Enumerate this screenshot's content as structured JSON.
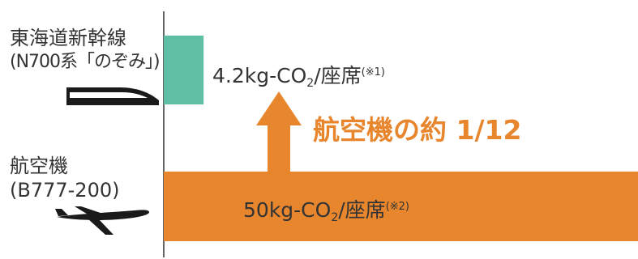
{
  "chart_data": {
    "type": "bar",
    "orientation": "horizontal",
    "unit": "kg-CO₂/座席",
    "categories": [
      {
        "name": "東海道新幹線",
        "detail": "(N700系「のぞみ」)",
        "icon": "shinkansen-train-icon"
      },
      {
        "name": "航空機",
        "detail": "(B777-200)",
        "icon": "airplane-icon"
      }
    ],
    "values": [
      4.2,
      50
    ],
    "value_labels": [
      {
        "number": "4.2",
        "unit_main": "kg-CO",
        "unit_sub": "2",
        "unit_tail": "/座席",
        "note": "(※1)"
      },
      {
        "number": "50",
        "unit_main": "kg-CO",
        "unit_sub": "2",
        "unit_tail": "/座席",
        "note": "(※2)"
      }
    ],
    "annotation": "航空機の約 1/12",
    "colors": {
      "shinkansen": "#5fbfa5",
      "airplane": "#e8862e",
      "arrow": "#e8862e",
      "text": "#333333",
      "axis": "#333333"
    },
    "xlim": [
      0,
      50
    ]
  }
}
